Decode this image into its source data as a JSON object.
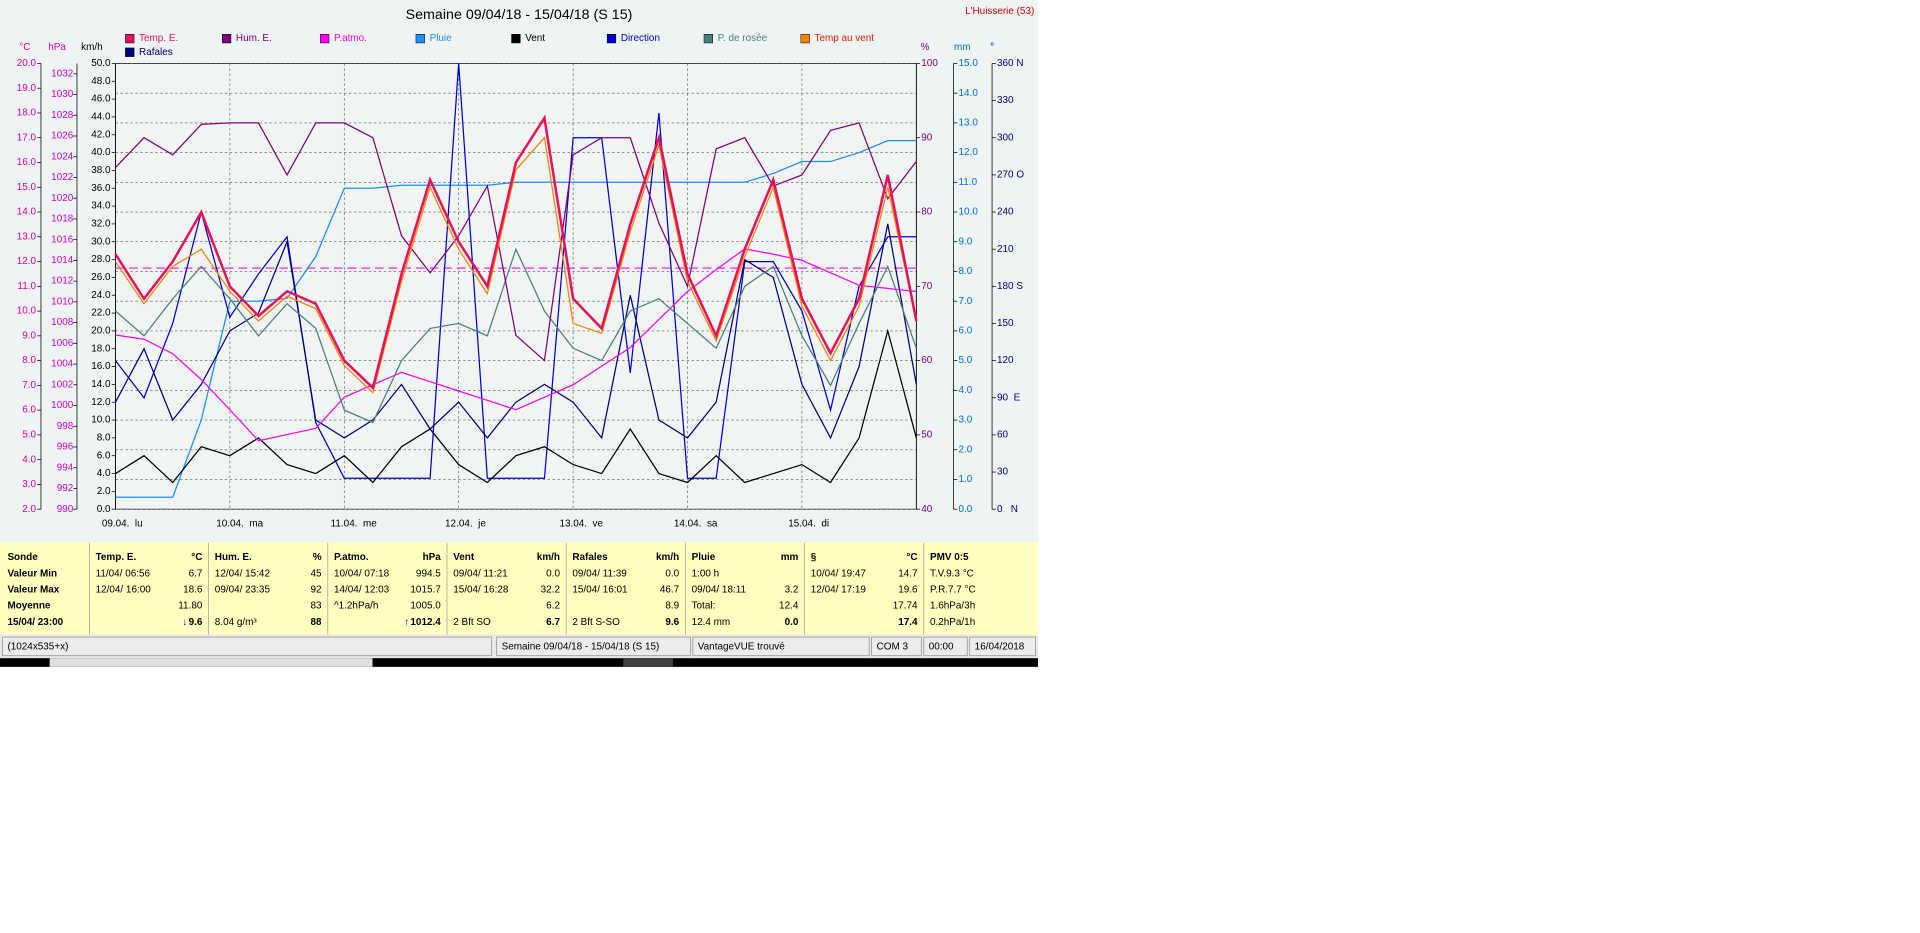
{
  "chart_data": {
    "type": "line",
    "title": "Semaine 09/04/18 - 15/04/18 (S 15)",
    "station": "L'Huisserie (53)",
    "x": [
      0,
      0.25,
      0.5,
      0.75,
      1,
      1.25,
      1.5,
      1.75,
      2,
      2.25,
      2.5,
      2.75,
      3,
      3.25,
      3.5,
      3.75,
      4,
      4.25,
      4.5,
      4.75,
      5,
      5.25,
      5.5,
      5.75,
      6,
      6.25,
      6.5,
      6.75,
      7
    ],
    "xlim": [
      0,
      7
    ],
    "xticks": [
      {
        "value": 0,
        "label": "09.04.  lu"
      },
      {
        "value": 1,
        "label": "10.04.  ma"
      },
      {
        "value": 2,
        "label": "11.04.  me"
      },
      {
        "value": 3,
        "label": "12.04.  je"
      },
      {
        "value": 4,
        "label": "13.04.  ve"
      },
      {
        "value": 5,
        "label": "14.04.  sa"
      },
      {
        "value": 6,
        "label": "15.04.  di"
      }
    ],
    "grid": true,
    "grid_axis": 4,
    "reference_line": {
      "axis": 1,
      "value": 1013.25,
      "color": "#ff40ff"
    },
    "axes": [
      {
        "label": "°C",
        "color": "#e000a0",
        "lim": [
          2,
          20
        ],
        "ticks": [
          {
            "value": 2,
            "label": "2.0"
          },
          {
            "value": 3,
            "label": "3.0"
          },
          {
            "value": 4,
            "label": "4.0"
          },
          {
            "value": 5,
            "label": "5.0"
          },
          {
            "value": 6,
            "label": "6.0"
          },
          {
            "value": 7,
            "label": "7.0"
          },
          {
            "value": 8,
            "label": "8.0"
          },
          {
            "value": 9,
            "label": "9.0"
          },
          {
            "value": 10,
            "label": "10.0"
          },
          {
            "value": 11,
            "label": "11.0"
          },
          {
            "value": 12,
            "label": "12.0"
          },
          {
            "value": 13,
            "label": "13.0"
          },
          {
            "value": 14,
            "label": "14.0"
          },
          {
            "value": 15,
            "label": "15.0"
          },
          {
            "value": 16,
            "label": "16.0"
          },
          {
            "value": 17,
            "label": "17.0"
          },
          {
            "value": 18,
            "label": "18.0"
          },
          {
            "value": 19,
            "label": "19.0"
          },
          {
            "value": 20,
            "label": "20.0"
          }
        ]
      },
      {
        "label": "hPa",
        "color": "#d000d0",
        "lim": [
          990,
          1033
        ],
        "ticks": [
          990,
          992,
          994,
          996,
          998,
          1000,
          1002,
          1004,
          1006,
          1008,
          1010,
          1012,
          1014,
          1016,
          1018,
          1020,
          1022,
          1024,
          1026,
          1028,
          1030,
          1032
        ]
      },
      {
        "label": "km/h",
        "color": "#000000",
        "lim": [
          0,
          50
        ],
        "ticks": [
          {
            "value": 0,
            "label": "0.0"
          },
          {
            "value": 2,
            "label": "2.0"
          },
          {
            "value": 4,
            "label": "4.0"
          },
          {
            "value": 6,
            "label": "6.0"
          },
          {
            "value": 8,
            "label": "8.0"
          },
          {
            "value": 10,
            "label": "10.0"
          },
          {
            "value": 12,
            "label": "12.0"
          },
          {
            "value": 14,
            "label": "14.0"
          },
          {
            "value": 16,
            "label": "16.0"
          },
          {
            "value": 18,
            "label": "18.0"
          },
          {
            "value": 20,
            "label": "20.0"
          },
          {
            "value": 22,
            "label": "22.0"
          },
          {
            "value": 24,
            "label": "24.0"
          },
          {
            "value": 26,
            "label": "26.0"
          },
          {
            "value": 28,
            "label": "28.0"
          },
          {
            "value": 30,
            "label": "30.0"
          },
          {
            "value": 32,
            "label": "32.0"
          },
          {
            "value": 34,
            "label": "34.0"
          },
          {
            "value": 36,
            "label": "36.0"
          },
          {
            "value": 38,
            "label": "38.0"
          },
          {
            "value": 40,
            "label": "40.0"
          },
          {
            "value": 42,
            "label": "42.0"
          },
          {
            "value": 44,
            "label": "44.0"
          },
          {
            "value": 46,
            "label": "46.0"
          },
          {
            "value": 48,
            "label": "48.0"
          },
          {
            "value": 50,
            "label": "50.0"
          }
        ]
      },
      {
        "label": "%",
        "color": "#800080",
        "lim": [
          40,
          100
        ],
        "ticks": [
          40,
          50,
          60,
          70,
          80,
          90,
          100
        ]
      },
      {
        "label": "mm",
        "color": "#0070e0",
        "lim": [
          0,
          15
        ],
        "ticks": [
          {
            "value": 0,
            "label": "0.0"
          },
          {
            "value": 1,
            "label": "1.0"
          },
          {
            "value": 2,
            "label": "2.0"
          },
          {
            "value": 3,
            "label": "3.0"
          },
          {
            "value": 4,
            "label": "4.0"
          },
          {
            "value": 5,
            "label": "5.0"
          },
          {
            "value": 6,
            "label": "6.0"
          },
          {
            "value": 7,
            "label": "7.0"
          },
          {
            "value": 8,
            "label": "8.0"
          },
          {
            "value": 9,
            "label": "9.0"
          },
          {
            "value": 10,
            "label": "10.0"
          },
          {
            "value": 11,
            "label": "11.0"
          },
          {
            "value": 12,
            "label": "12.0"
          },
          {
            "value": 13,
            "label": "13.0"
          },
          {
            "value": 14,
            "label": "14.0"
          },
          {
            "value": 15,
            "label": "15.0"
          }
        ]
      },
      {
        "label": "°",
        "color": "#000090",
        "lim": [
          0,
          360
        ],
        "ticks": [
          {
            "value": 0,
            "label": "0   N"
          },
          30,
          60,
          {
            "value": 90,
            "label": "90  E"
          },
          120,
          150,
          {
            "value": 180,
            "label": "180 S"
          },
          210,
          240,
          {
            "value": 270,
            "label": "270 O"
          },
          300,
          330,
          {
            "value": 360,
            "label": "360 N"
          }
        ]
      }
    ],
    "series": [
      {
        "name": "Temp. E.",
        "color": "#e8105c",
        "axis": 0,
        "values": [
          12.3,
          10.5,
          12.0,
          14.0,
          11.0,
          9.8,
          10.8,
          10.3,
          8.0,
          6.9,
          11.5,
          15.3,
          12.8,
          11.0,
          16.0,
          17.8,
          10.5,
          9.3,
          13.5,
          17.0,
          11.5,
          9.0,
          12.5,
          15.3,
          10.5,
          8.3,
          10.5,
          15.5,
          9.6
        ]
      },
      {
        "name": "Hum. E.",
        "color": "#800080",
        "axis": 3,
        "values": [
          86,
          90,
          87.7,
          91.8,
          92,
          92,
          85,
          92,
          92,
          90,
          76.8,
          71.8,
          76.8,
          83.5,
          63.4,
          60,
          87.7,
          90,
          90,
          78.5,
          70,
          88.5,
          90,
          83.5,
          85,
          91,
          92,
          81.8,
          86.8
        ]
      },
      {
        "name": "P.atmo.",
        "color": "#ff00ff",
        "axis": 1,
        "values": [
          1006.8,
          1006.4,
          1005.0,
          1002.5,
          999.6,
          996.6,
          997.2,
          997.8,
          1000.8,
          1002,
          1003.2,
          1002.3,
          1001.4,
          1000.5,
          999.6,
          1000.8,
          1002,
          1003.8,
          1005.6,
          1008.3,
          1011,
          1013.1,
          1015.1,
          1014.6,
          1014,
          1012.8,
          1011.6,
          1011.3,
          1011
        ]
      },
      {
        "name": "Pluie",
        "color": "#1e8cff",
        "axis": 4,
        "values": [
          0.4,
          0.4,
          0.4,
          3.0,
          7.0,
          7.0,
          7.1,
          8.5,
          10.8,
          10.8,
          10.9,
          10.9,
          10.9,
          10.9,
          11.0,
          11.0,
          11.0,
          11.0,
          11.0,
          11.0,
          11.0,
          11.0,
          11.0,
          11.3,
          11.7,
          11.7,
          12.0,
          12.4,
          12.4
        ]
      },
      {
        "name": "Vent",
        "color": "#000000",
        "axis": 2,
        "values": [
          4,
          6,
          3,
          7,
          6,
          8,
          5,
          4,
          6,
          3,
          7,
          9,
          5,
          3,
          6,
          7,
          5,
          4,
          9,
          4,
          3,
          6,
          3,
          4,
          5,
          3,
          8,
          20,
          8
        ]
      },
      {
        "name": "Direction",
        "color": "#0000d0",
        "axis": 5,
        "values": [
          120,
          90,
          150,
          240,
          155,
          190,
          220,
          70,
          25,
          25,
          25,
          25,
          360,
          25,
          25,
          25,
          300,
          300,
          110,
          320,
          25,
          25,
          200,
          200,
          160,
          80,
          180,
          220,
          220
        ]
      },
      {
        "name": "P. de rosée",
        "color": "#4d7f7a",
        "axis": 0,
        "values": [
          10.0,
          9.0,
          10.5,
          11.8,
          10.5,
          9.0,
          10.3,
          9.3,
          6.0,
          5.5,
          8.0,
          9.3,
          9.5,
          9.0,
          12.5,
          10.0,
          8.5,
          8.0,
          10.0,
          10.5,
          9.5,
          8.5,
          11.0,
          11.8,
          9.0,
          7.0,
          9.5,
          11.8,
          8.5
        ]
      },
      {
        "name": "Temp au vent",
        "color": "#ff8000",
        "axis": 0,
        "values": [
          12.0,
          10.3,
          11.8,
          12.5,
          10.8,
          9.6,
          10.6,
          10.1,
          7.8,
          6.7,
          11.2,
          15.0,
          12.5,
          10.7,
          15.7,
          17.0,
          9.5,
          9.1,
          13.2,
          16.7,
          11.2,
          8.8,
          12.2,
          15.0,
          10.2,
          8.0,
          10.2,
          15.0,
          9.6
        ]
      },
      {
        "name": "Rafales",
        "color": "#000080",
        "axis": 2,
        "values": [
          12,
          18,
          10,
          14,
          20,
          22,
          30,
          10,
          8,
          10,
          14,
          9,
          12,
          8,
          12,
          14,
          12,
          8,
          24,
          10,
          8,
          12,
          28,
          26,
          14,
          8,
          16,
          32,
          14
        ]
      }
    ]
  },
  "table": {
    "corner": "Sonde",
    "row_labels": [
      "Valeur Min",
      "Valeur Max",
      "Moyenne",
      "15/04/ 23:00"
    ],
    "columns": [
      {
        "header": "Temp. E.",
        "unit": "°C",
        "rows": [
          {
            "left": "11/04/ 06:56",
            "right": "6.7"
          },
          {
            "left": "12/04/ 16:00",
            "right": "18.6"
          },
          {
            "right": "11.80"
          },
          {
            "arrow": "↓",
            "right": "9.6"
          }
        ]
      },
      {
        "header": "Hum. E.",
        "unit": "%",
        "rows": [
          {
            "left": "12/04/ 15:42",
            "right": "45"
          },
          {
            "left": "09/04/ 23:35",
            "right": "92"
          },
          {
            "right": "83"
          },
          {
            "left": "8.04 g/m³",
            "right": "88"
          }
        ]
      },
      {
        "header": "P.atmo.",
        "unit": "hPa",
        "rows": [
          {
            "left": "10/04/ 07:18",
            "right": "994.5"
          },
          {
            "left": "14/04/ 12:03",
            "right": "1015.7"
          },
          {
            "left": "^1.2hPa/h",
            "right": "1005.0"
          },
          {
            "arrow": "↑",
            "right": "1012.4"
          }
        ]
      },
      {
        "header": "Vent",
        "unit": "km/h",
        "rows": [
          {
            "left": "09/04/ 11:21",
            "right": "0.0"
          },
          {
            "left": "15/04/ 16:28",
            "right": "32.2"
          },
          {
            "right": "6.2"
          },
          {
            "left": "2 Bft SO",
            "right": "6.7"
          }
        ]
      },
      {
        "header": "Rafales",
        "unit": "km/h",
        "rows": [
          {
            "left": "09/04/ 11:39",
            "right": "0.0"
          },
          {
            "left": "15/04/ 16:01",
            "right": "46.7"
          },
          {
            "right": "8.9"
          },
          {
            "left": "2 Bft S-SO",
            "right": "9.6"
          }
        ]
      },
      {
        "header": "Pluie",
        "unit": "mm",
        "rows": [
          {
            "left": "1:00 h"
          },
          {
            "left": "09/04/ 18:11",
            "right": "3.2"
          },
          {
            "left": "Total:",
            "right": "12.4"
          },
          {
            "left": "12.4 mm",
            "right": "0.0"
          }
        ]
      },
      {
        "header": "§",
        "unit": "°C",
        "rows": [
          {
            "left": "10/04/ 19:47",
            "right": "14.7"
          },
          {
            "left": "12/04/ 17:19",
            "right": "19.6"
          },
          {
            "right": "17.74"
          },
          {
            "right": "17.4"
          }
        ]
      },
      {
        "header": "PMV 0:5",
        "rows": [
          {
            "left": "T.V.9.3 °C"
          },
          {
            "left": "P.R.7.7 °C"
          },
          {
            "left": "1.6hPa/3h"
          },
          {
            "left": "0.2hPa/1h"
          }
        ]
      }
    ]
  },
  "status_bar": [
    "(1024x535+x)",
    "Semaine 09/04/18 - 15/04/18 (S 15)",
    "VantageVUE trouvé",
    "COM 3",
    "00:00",
    "16/04/2018"
  ]
}
